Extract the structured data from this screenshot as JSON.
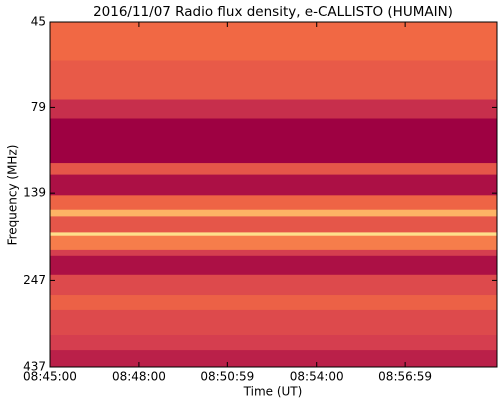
{
  "chart_data": {
    "type": "heatmap",
    "title": "2016/11/07  Radio flux density, e-CALLISTO (HUMAIN)",
    "x_label": "Time (UT)",
    "y_label": "Frequency (MHz)",
    "xlim": [
      "08:45:00",
      "09:00:05"
    ],
    "xticks": [
      "08:45:00",
      "08:48:00",
      "08:50:59",
      "08:54:00",
      "08:56:59"
    ],
    "ylim": [
      45,
      437
    ],
    "yticks": [
      45,
      79,
      139,
      247,
      437
    ],
    "log_y": true,
    "y_inverted": true,
    "y_bins": [
      45,
      58,
      75,
      85,
      114,
      123,
      141,
      155,
      162,
      180,
      184,
      202,
      210,
      238,
      272,
      300,
      354,
      391,
      437
    ],
    "values": [
      0.38,
      0.32,
      0.15,
      0.0,
      0.3,
      0.05,
      0.36,
      0.62,
      0.3,
      0.8,
      0.45,
      0.2,
      0.05,
      0.25,
      0.35,
      0.25,
      0.2,
      0.1
    ],
    "clim": [
      0,
      1
    ],
    "colormap": [
      "#9e0142",
      "#d53e4f",
      "#f46d43",
      "#fdae61",
      "#fee08b",
      "#e6f598"
    ]
  }
}
